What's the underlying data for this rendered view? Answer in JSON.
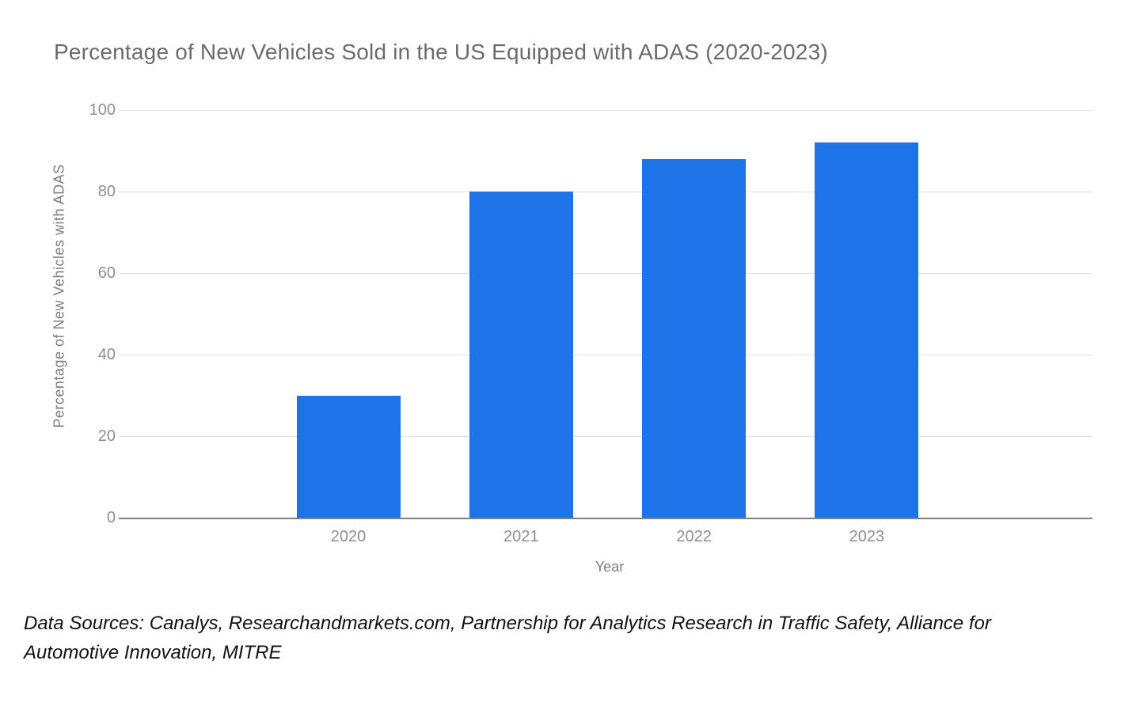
{
  "chart_data": {
    "type": "bar",
    "title": "Percentage of New Vehicles Sold in the US Equipped with ADAS (2020-2023)",
    "categories": [
      "2020",
      "2021",
      "2022",
      "2023"
    ],
    "values": [
      30,
      80,
      88,
      92
    ],
    "xlabel": "Year",
    "ylabel": "Percentage of New Vehicles with ADAS",
    "ylim": [
      0,
      100
    ],
    "yticks": [
      0,
      20,
      40,
      60,
      80,
      100
    ],
    "grid": true,
    "legend": "none",
    "bar_color": "#1e73e8"
  },
  "footer": {
    "text": "Data Sources: Canalys, Researchandmarkets.com, Partnership for Analytics Research in Traffic Safety, Alliance for Automotive Innovation, MITRE"
  },
  "colors": {
    "bar": "#1e73e8",
    "title_text": "#6b6b6b",
    "tick_text": "#8f8f8f",
    "axis_title_text": "#7c7c7c",
    "gridline": "#e2e2e2",
    "baseline": "#818181",
    "background": "#ffffff",
    "footer_text": "#121212"
  }
}
